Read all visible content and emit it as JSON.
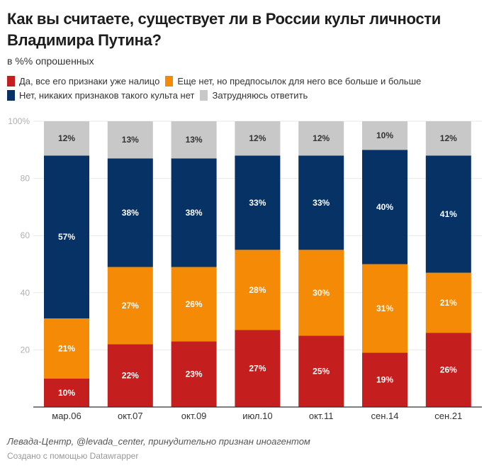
{
  "chart_data": {
    "type": "bar",
    "stacked": true,
    "title": "Как вы считаете, существует ли в России культ личности Владимира Путина?",
    "subtitle": "в %% опрошенных",
    "xlabel": "",
    "ylabel": "",
    "ylim": [
      0,
      100
    ],
    "yticks": [
      "20",
      "40",
      "60",
      "80",
      "100%"
    ],
    "ytick_values": [
      20,
      40,
      60,
      80,
      100
    ],
    "grid": true,
    "legend_position": "top-left",
    "categories": [
      "мар.06",
      "окт.07",
      "окт.09",
      "июл.10",
      "окт.11",
      "сен.14",
      "сен.21"
    ],
    "series": [
      {
        "name": "Да, все его признаки уже налицо",
        "color": "#c41e1e",
        "label_color": "#ffffff",
        "values": [
          10,
          22,
          23,
          27,
          25,
          19,
          26
        ]
      },
      {
        "name": "Еще нет, но предпосылок для него все больше и больше",
        "color": "#f58a07",
        "label_color": "#ffffff",
        "values": [
          21,
          27,
          26,
          28,
          30,
          31,
          21
        ]
      },
      {
        "name": "Нет, никаких признаков такого культа нет",
        "color": "#063266",
        "label_color": "#ffffff",
        "values": [
          57,
          38,
          38,
          33,
          33,
          40,
          41
        ]
      },
      {
        "name": "Затрудняюсь ответить",
        "color": "#c8c8c8",
        "label_color": "#333333",
        "values": [
          12,
          13,
          13,
          12,
          12,
          10,
          12
        ]
      }
    ],
    "value_suffix": "%"
  },
  "footer": {
    "source": "Левада-Центр, @levada_center, принудительно признан иноагентом",
    "credit": "Создано с помощью Datawrapper"
  }
}
